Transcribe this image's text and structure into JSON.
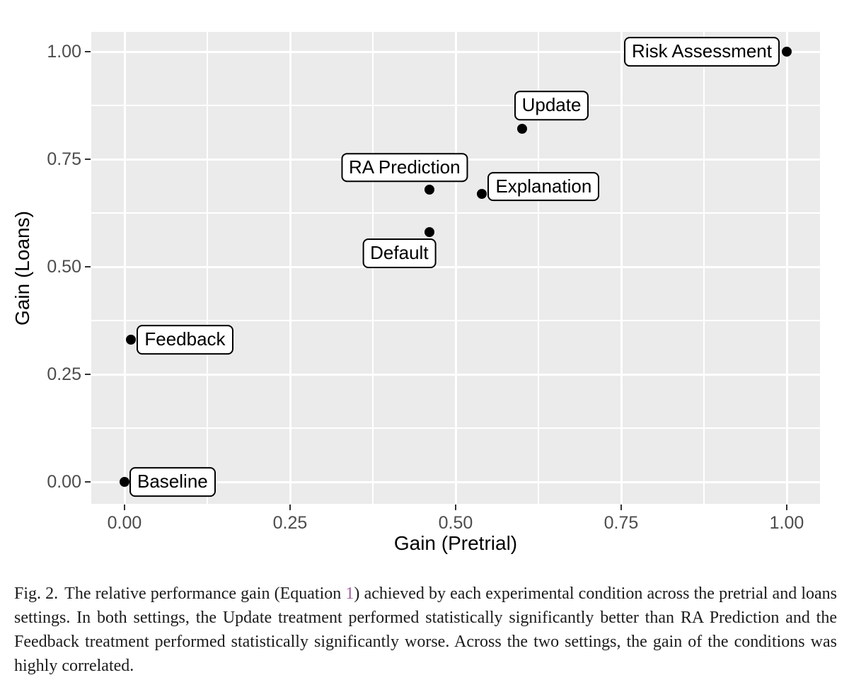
{
  "figure": {
    "caption": {
      "label": "Fig. 2.",
      "before_link": "The relative performance gain (Equation",
      "link": "1",
      "after_link": ") achieved by each experimental condition across the pretrial and loans settings. In both settings, the Update treatment performed statistically significantly better than RA Prediction and the Feedback treatment performed statistically significantly worse. Across the two settings, the gain of the conditions was highly correlated.",
      "link_color": "#a25fa3"
    }
  },
  "chart_data": {
    "type": "scatter",
    "title": "",
    "xlabel": "Gain (Pretrial)",
    "ylabel": "Gain (Loans)",
    "xlim": [
      -0.05,
      1.05
    ],
    "ylim": [
      -0.05,
      1.05
    ],
    "x_ticks": [
      0,
      0.25,
      0.5,
      0.75,
      1
    ],
    "y_ticks": [
      0,
      0.25,
      0.5,
      0.75,
      1
    ],
    "x_tick_labels": [
      "0.00",
      "0.25",
      "0.50",
      "0.75",
      "1.00"
    ],
    "y_tick_labels": [
      "0.00",
      "0.25",
      "0.50",
      "0.75",
      "1.00"
    ],
    "grid": "major and minor white gridlines on gray panel",
    "legend": "none",
    "points": [
      {
        "label": "Baseline",
        "x": 0.0,
        "y": 0.0
      },
      {
        "label": "Feedback",
        "x": 0.01,
        "y": 0.33
      },
      {
        "label": "Default",
        "x": 0.46,
        "y": 0.58
      },
      {
        "label": "RA Prediction",
        "x": 0.46,
        "y": 0.68
      },
      {
        "label": "Explanation",
        "x": 0.54,
        "y": 0.67
      },
      {
        "label": "Update",
        "x": 0.6,
        "y": 0.82
      },
      {
        "label": "Risk Assessment",
        "x": 1.0,
        "y": 1.0
      }
    ],
    "colors": {
      "panel_bg": "#EBEBEB",
      "gridline": "#FFFFFF",
      "point": "#000000",
      "axis_text": "#4D4D4D",
      "axis_title": "#000000",
      "label_box_bg": "#FFFFFF",
      "label_box_border": "#000000"
    }
  }
}
